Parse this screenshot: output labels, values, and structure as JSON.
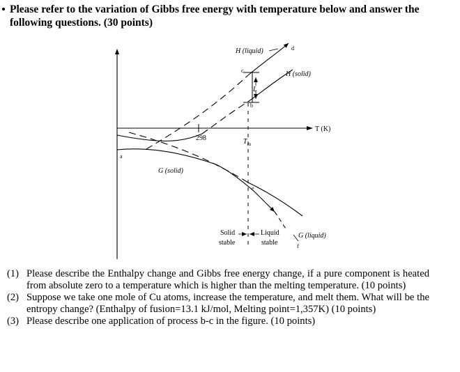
{
  "heading": "Please refer to the variation of Gibbs free energy with temperature below and answer the following questions. (30 points)",
  "figure": {
    "labels": {
      "h_liquid": "H (liquid)",
      "h_solid": "H (solid)",
      "g_solid": "G (solid)",
      "g_liquid": "G (liquid)",
      "t_axis": "T (K)",
      "t298": "298",
      "tm": "T",
      "tm_sub": "m",
      "latent": "L",
      "point_a": "a",
      "point_b": "b",
      "point_c": "c",
      "point_d": "d",
      "point_e": "e",
      "point_f": "f",
      "solid_stable_1": "Solid",
      "solid_stable_2": "stable",
      "liquid_stable_1": "Liquid",
      "liquid_stable_2": "stable"
    }
  },
  "questions": [
    {
      "num": "(1)",
      "text": "Please describe the Enthalpy change and Gibbs free energy change, if a pure component is heated from absolute zero to a temperature which is higher than the melting temperature. (10 points)"
    },
    {
      "num": "(2)",
      "text": "Suppose we take one mole of Cu atoms, increase the temperature, and melt them. What will be the entropy change? (Enthalpy of fusion=13.1 kJ/mol, Melting point=1,357K) (10 points)"
    },
    {
      "num": "(3)",
      "text": "Please describe one application of process b-c in the figure. (10 points)"
    }
  ]
}
